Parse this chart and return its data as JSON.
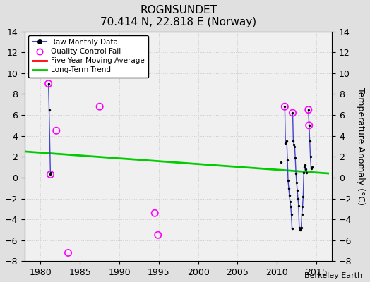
{
  "title": "ROGNSUNDET",
  "subtitle": "70.414 N, 22.818 E (Norway)",
  "ylabel": "Temperature Anomaly (°C)",
  "credit": "Berkeley Earth",
  "xlim": [
    1978,
    2017
  ],
  "ylim": [
    -8,
    14
  ],
  "yticks": [
    -8,
    -6,
    -4,
    -2,
    0,
    2,
    4,
    6,
    8,
    10,
    12,
    14
  ],
  "xticks": [
    1980,
    1985,
    1990,
    1995,
    2000,
    2005,
    2010,
    2015
  ],
  "background_color": "#e0e0e0",
  "plot_background": "#f0f0f0",
  "raw_segments": [
    {
      "x": [
        1981.0,
        1981.08
      ],
      "y": [
        9.0,
        6.5
      ]
    },
    {
      "x": [
        1981.08,
        1981.25
      ],
      "y": [
        6.5,
        0.3
      ]
    },
    {
      "x": [
        1981.25,
        1981.33
      ],
      "y": [
        0.3,
        0.5
      ]
    },
    {
      "x": [
        2011.0,
        2011.083
      ],
      "y": [
        6.8,
        3.3
      ]
    },
    {
      "x": [
        2011.083,
        2011.167
      ],
      "y": [
        3.3,
        3.4
      ]
    },
    {
      "x": [
        2011.167,
        2011.25
      ],
      "y": [
        3.4,
        3.5
      ]
    },
    {
      "x": [
        2011.25,
        2011.333
      ],
      "y": [
        3.5,
        1.7
      ]
    },
    {
      "x": [
        2011.333,
        2011.417
      ],
      "y": [
        1.7,
        -0.3
      ]
    },
    {
      "x": [
        2011.417,
        2011.5
      ],
      "y": [
        -0.3,
        -1.0
      ]
    },
    {
      "x": [
        2011.5,
        2011.583
      ],
      "y": [
        -1.0,
        -1.7
      ]
    },
    {
      "x": [
        2011.583,
        2011.667
      ],
      "y": [
        -1.7,
        -2.3
      ]
    },
    {
      "x": [
        2011.667,
        2011.75
      ],
      "y": [
        -2.3,
        -2.8
      ]
    },
    {
      "x": [
        2011.75,
        2011.833
      ],
      "y": [
        -2.8,
        -3.5
      ]
    },
    {
      "x": [
        2011.833,
        2011.917
      ],
      "y": [
        -3.5,
        -4.9
      ]
    },
    {
      "x": [
        2012.0,
        2012.083
      ],
      "y": [
        6.2,
        3.5
      ]
    },
    {
      "x": [
        2012.083,
        2012.167
      ],
      "y": [
        3.5,
        3.2
      ]
    },
    {
      "x": [
        2012.167,
        2012.25
      ],
      "y": [
        3.2,
        3.0
      ]
    },
    {
      "x": [
        2012.25,
        2012.333
      ],
      "y": [
        3.0,
        1.9
      ]
    },
    {
      "x": [
        2012.333,
        2012.417
      ],
      "y": [
        1.9,
        0.4
      ]
    },
    {
      "x": [
        2012.417,
        2012.5
      ],
      "y": [
        0.4,
        -0.5
      ]
    },
    {
      "x": [
        2012.5,
        2012.583
      ],
      "y": [
        -0.5,
        -1.2
      ]
    },
    {
      "x": [
        2012.583,
        2012.667
      ],
      "y": [
        -1.2,
        -2.0
      ]
    },
    {
      "x": [
        2012.667,
        2012.75
      ],
      "y": [
        -2.0,
        -2.7
      ]
    },
    {
      "x": [
        2012.75,
        2012.833
      ],
      "y": [
        -2.7,
        -4.8
      ]
    },
    {
      "x": [
        2012.833,
        2012.917
      ],
      "y": [
        -4.8,
        -5.0
      ]
    },
    {
      "x": [
        2013.0,
        2013.083
      ],
      "y": [
        -4.9,
        -4.8
      ]
    },
    {
      "x": [
        2013.083,
        2013.167
      ],
      "y": [
        -4.8,
        -3.5
      ]
    },
    {
      "x": [
        2013.167,
        2013.25
      ],
      "y": [
        -3.5,
        -2.8
      ]
    },
    {
      "x": [
        2013.25,
        2013.333
      ],
      "y": [
        -2.8,
        -1.8
      ]
    },
    {
      "x": [
        2013.333,
        2013.417
      ],
      "y": [
        -1.8,
        0.5
      ]
    },
    {
      "x": [
        2013.417,
        2013.5
      ],
      "y": [
        0.5,
        1.0
      ]
    },
    {
      "x": [
        2013.5,
        2013.583
      ],
      "y": [
        1.0,
        1.2
      ]
    },
    {
      "x": [
        2013.583,
        2013.667
      ],
      "y": [
        1.2,
        0.8
      ]
    },
    {
      "x": [
        2013.667,
        2013.75
      ],
      "y": [
        0.8,
        0.5
      ]
    },
    {
      "x": [
        2014.0,
        2014.083
      ],
      "y": [
        6.5,
        5.0
      ]
    },
    {
      "x": [
        2014.083,
        2014.167
      ],
      "y": [
        5.0,
        3.5
      ]
    },
    {
      "x": [
        2014.167,
        2014.25
      ],
      "y": [
        3.5,
        2.0
      ]
    },
    {
      "x": [
        2014.25,
        2014.333
      ],
      "y": [
        2.0,
        0.9
      ]
    },
    {
      "x": [
        2014.333,
        2014.5
      ],
      "y": [
        0.9,
        1.0
      ]
    }
  ],
  "raw_dots_x": [
    1981.0,
    1981.08,
    1981.25,
    1981.33,
    2011.0,
    2011.083,
    2011.167,
    2011.25,
    2011.333,
    2011.417,
    2011.5,
    2011.583,
    2011.667,
    2011.75,
    2011.833,
    2011.917,
    2012.0,
    2012.083,
    2012.167,
    2012.25,
    2012.333,
    2012.417,
    2012.5,
    2012.583,
    2012.667,
    2012.75,
    2012.833,
    2012.917,
    2013.0,
    2013.083,
    2013.167,
    2013.25,
    2013.333,
    2013.417,
    2013.5,
    2013.583,
    2013.667,
    2013.75,
    2014.0,
    2014.083,
    2014.167,
    2014.25,
    2014.333,
    2014.5,
    2010.5
  ],
  "raw_dots_y": [
    9.0,
    6.5,
    0.3,
    0.5,
    6.8,
    3.3,
    3.4,
    3.5,
    1.7,
    -0.3,
    -1.0,
    -1.7,
    -2.3,
    -2.8,
    -3.5,
    -4.9,
    6.2,
    3.5,
    3.2,
    3.0,
    1.9,
    0.4,
    -0.5,
    -1.2,
    -2.0,
    -2.7,
    -4.8,
    -5.0,
    -4.9,
    -4.8,
    -3.5,
    -2.8,
    -1.8,
    0.5,
    1.0,
    1.2,
    0.8,
    0.5,
    6.5,
    5.0,
    3.5,
    2.0,
    0.9,
    1.0,
    1.5
  ],
  "qc_fail_x": [
    1981.0,
    1981.25,
    1982.0,
    1983.5,
    1987.5,
    1994.5,
    1994.9,
    2011.0,
    2012.0,
    2014.0,
    2014.083
  ],
  "qc_fail_y": [
    9.0,
    0.3,
    4.5,
    -7.2,
    6.8,
    -3.4,
    -5.5,
    6.8,
    6.2,
    6.5,
    5.0
  ],
  "trend_x": [
    1978,
    2016.5
  ],
  "trend_y": [
    2.5,
    0.4
  ],
  "trend_color": "#00cc00",
  "raw_line_color": "#4444cc",
  "raw_dot_color": "#000000",
  "qc_color": "#ff00ff",
  "moving_avg_color": "#ff0000"
}
